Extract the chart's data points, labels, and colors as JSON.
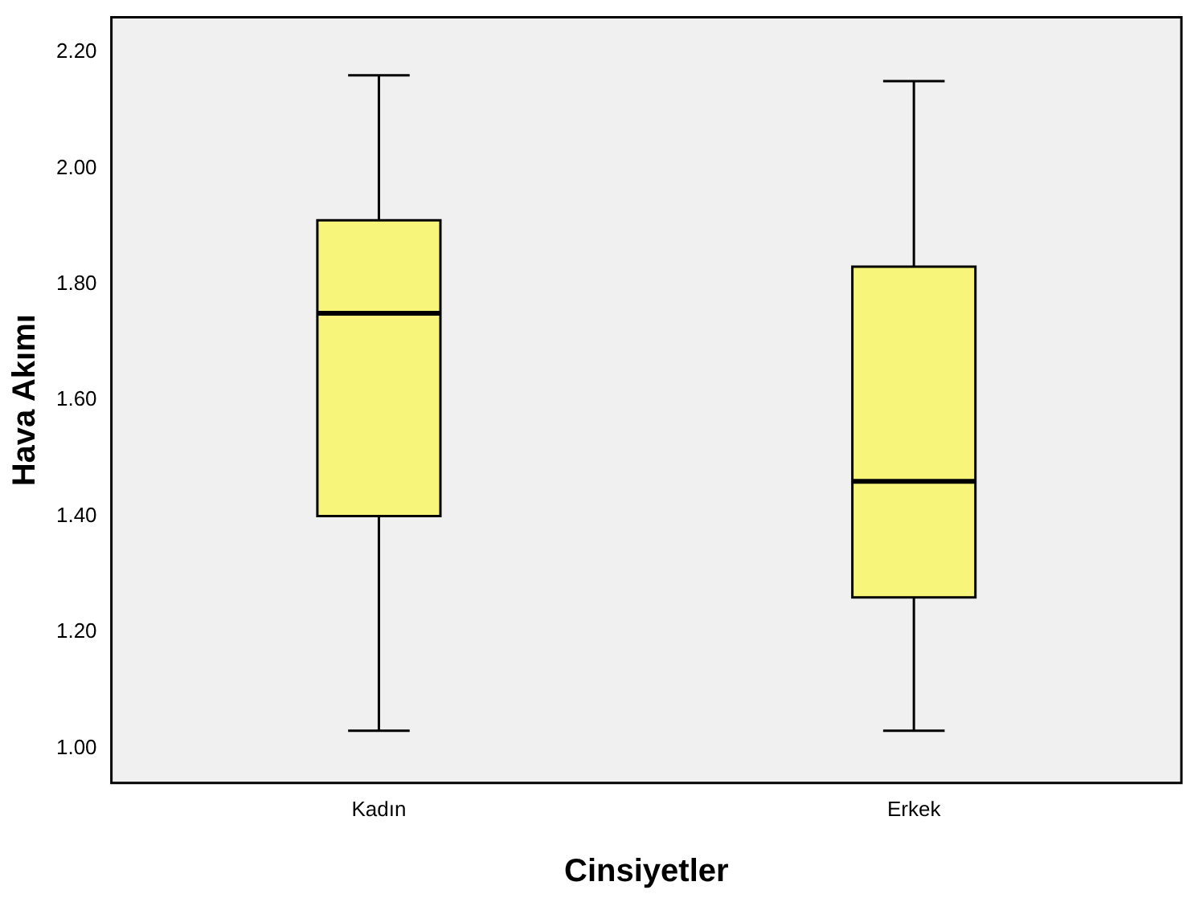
{
  "chart_data": {
    "type": "box",
    "xlabel": "Cinsiyetler",
    "ylabel": "Hava Akımı",
    "categories": [
      "Kadın",
      "Erkek"
    ],
    "color": "#f7f57a",
    "boxes": [
      {
        "low": 1.03,
        "q1": 1.4,
        "median": 1.75,
        "q3": 1.91,
        "high": 2.16
      },
      {
        "low": 1.03,
        "q1": 1.26,
        "median": 1.46,
        "q3": 1.83,
        "high": 2.15
      }
    ],
    "ylim": [
      0.94,
      2.26
    ],
    "yticks": [
      {
        "value": 1,
        "label": "1.00"
      },
      {
        "value": 1.2,
        "label": "1.20"
      },
      {
        "value": 1.4,
        "label": "1.40"
      },
      {
        "value": 1.6,
        "label": "1.60"
      },
      {
        "value": 1.8,
        "label": "1.80"
      },
      {
        "value": 2,
        "label": "2.00"
      },
      {
        "value": 2.2,
        "label": "2.20"
      }
    ],
    "grid": false,
    "legend": false
  }
}
